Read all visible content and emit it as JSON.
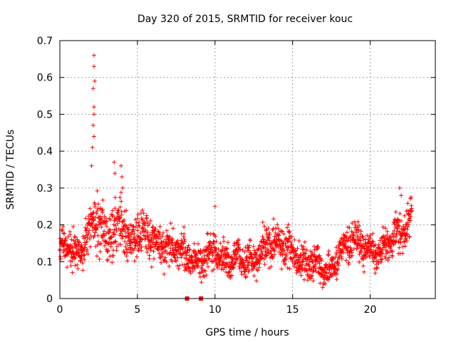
{
  "chart_data": {
    "type": "scatter",
    "title": "Day 320 of 2015, SRMTID for receiver kouc",
    "xlabel": "GPS time / hours",
    "ylabel": "SRMTID / TECUs",
    "xlim": [
      0,
      24.2
    ],
    "ylim": [
      0,
      0.7
    ],
    "xticks": [
      0,
      5,
      10,
      15,
      20
    ],
    "xtick_labels": [
      "0",
      "5",
      "10",
      "15",
      "20"
    ],
    "yticks": [
      0,
      0.1,
      0.2,
      0.3,
      0.4,
      0.5,
      0.6,
      0.7
    ],
    "ytick_labels": [
      "0",
      "0.1",
      "0.2",
      "0.3",
      "0.4",
      "0.5",
      "0.6",
      "0.7"
    ],
    "grid": true,
    "marker": "plus",
    "series_color": "#ff0000",
    "series": [
      {
        "name": "SRMTID",
        "approx_trend_x": [
          0.0,
          0.5,
          1.0,
          1.5,
          2.0,
          2.5,
          3.0,
          3.5,
          4.0,
          4.5,
          5.0,
          5.5,
          6.0,
          6.5,
          7.0,
          7.5,
          8.0,
          8.5,
          9.0,
          9.5,
          10.0,
          10.5,
          11.0,
          11.5,
          12.0,
          12.5,
          13.0,
          13.5,
          14.0,
          14.5,
          15.0,
          15.5,
          16.0,
          16.5,
          17.0,
          17.5,
          18.0,
          18.5,
          19.0,
          19.5,
          20.0,
          20.5,
          21.0,
          21.5,
          22.0,
          22.5,
          22.7
        ],
        "approx_trend_y": [
          0.14,
          0.15,
          0.12,
          0.14,
          0.2,
          0.22,
          0.16,
          0.18,
          0.2,
          0.15,
          0.18,
          0.17,
          0.16,
          0.14,
          0.13,
          0.14,
          0.13,
          0.1,
          0.1,
          0.12,
          0.13,
          0.11,
          0.1,
          0.11,
          0.1,
          0.1,
          0.13,
          0.15,
          0.14,
          0.13,
          0.13,
          0.1,
          0.09,
          0.1,
          0.08,
          0.07,
          0.13,
          0.15,
          0.16,
          0.14,
          0.13,
          0.12,
          0.14,
          0.17,
          0.18,
          0.2,
          0.24
        ],
        "approx_spread": [
          0.05,
          0.06,
          0.05,
          0.05,
          0.06,
          0.1,
          0.06,
          0.08,
          0.08,
          0.06,
          0.07,
          0.06,
          0.06,
          0.06,
          0.06,
          0.05,
          0.05,
          0.05,
          0.05,
          0.06,
          0.05,
          0.05,
          0.05,
          0.05,
          0.05,
          0.05,
          0.05,
          0.06,
          0.06,
          0.06,
          0.05,
          0.05,
          0.05,
          0.05,
          0.04,
          0.04,
          0.05,
          0.05,
          0.05,
          0.05,
          0.04,
          0.04,
          0.05,
          0.05,
          0.06,
          0.05,
          0.03
        ],
        "peaks": [
          {
            "x": 2.2,
            "y": 0.66
          },
          {
            "x": 2.2,
            "y": 0.63
          },
          {
            "x": 2.25,
            "y": 0.59
          },
          {
            "x": 2.15,
            "y": 0.57
          },
          {
            "x": 2.2,
            "y": 0.52
          },
          {
            "x": 2.2,
            "y": 0.5
          },
          {
            "x": 2.15,
            "y": 0.47
          },
          {
            "x": 2.2,
            "y": 0.44
          },
          {
            "x": 2.1,
            "y": 0.41
          },
          {
            "x": 2.05,
            "y": 0.36
          },
          {
            "x": 3.5,
            "y": 0.37
          },
          {
            "x": 3.55,
            "y": 0.34
          },
          {
            "x": 3.95,
            "y": 0.36
          },
          {
            "x": 4.0,
            "y": 0.33
          },
          {
            "x": 4.05,
            "y": 0.3
          },
          {
            "x": 10.0,
            "y": 0.25
          },
          {
            "x": 21.9,
            "y": 0.3
          },
          {
            "x": 22.0,
            "y": 0.28
          },
          {
            "x": 8.2,
            "y": 0.0
          },
          {
            "x": 9.1,
            "y": 0.0
          }
        ],
        "data_gaps_hours": [
          8.2,
          9.1
        ]
      }
    ]
  }
}
